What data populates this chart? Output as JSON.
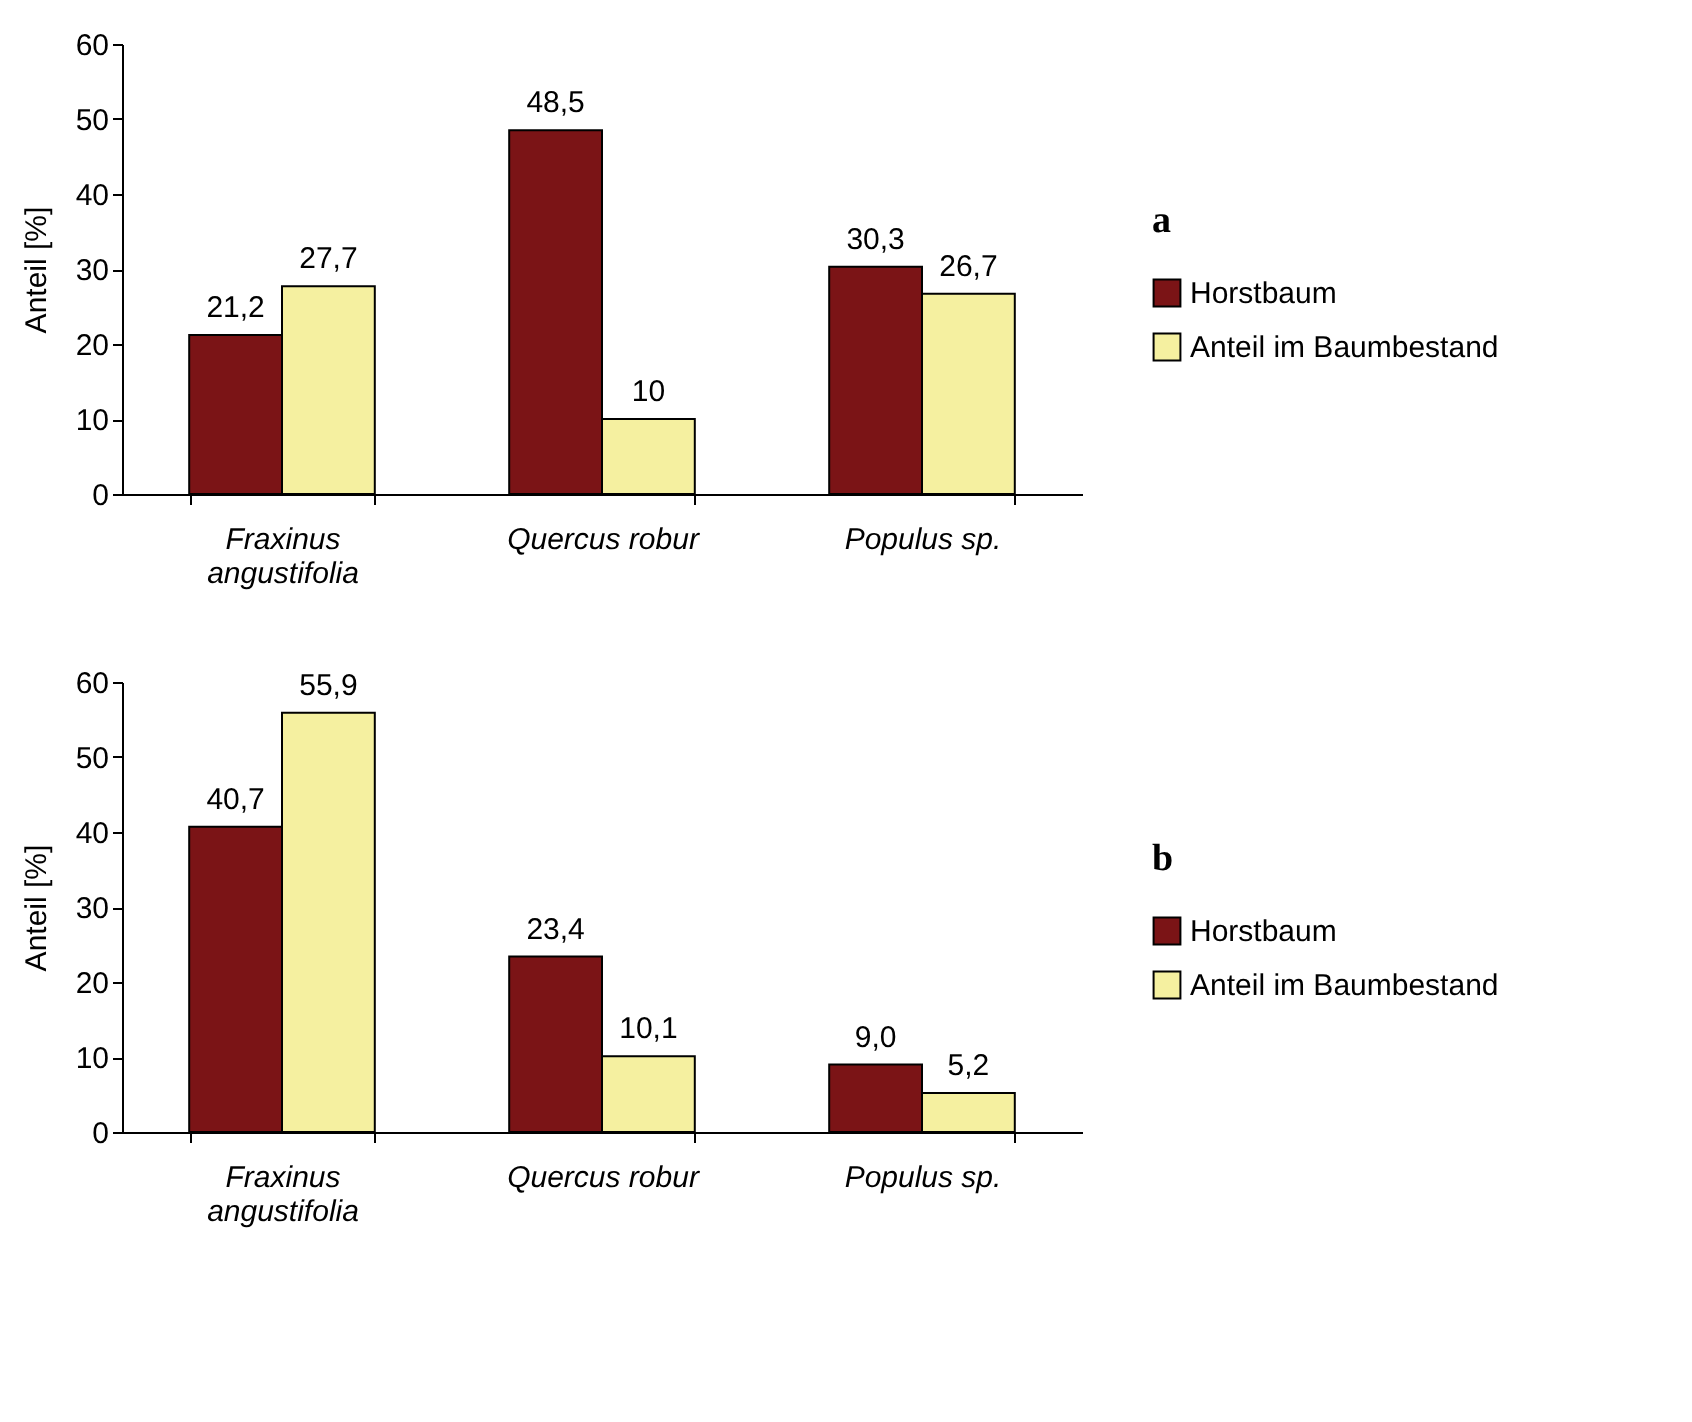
{
  "chart_data": [
    {
      "type": "bar",
      "annotations": [
        "a"
      ],
      "ylabel": "Anteil [%]",
      "categories": [
        "Fraxinus angustifolia",
        "Quercus robur",
        "Populus sp."
      ],
      "series": [
        {
          "name": "Horstbaum",
          "color": "#7b1416",
          "values": [
            21.2,
            48.5,
            30.3
          ],
          "value_labels": [
            "21,2",
            "48,5",
            "30,3"
          ]
        },
        {
          "name": "Anteil im Baumbestand",
          "color": "#f5f0a0",
          "values": [
            27.7,
            10,
            26.7
          ],
          "value_labels": [
            "27,7",
            "10",
            "26,7"
          ]
        }
      ],
      "ylim": [
        0,
        60
      ],
      "yticks": [
        0,
        10,
        20,
        30,
        40,
        50,
        60
      ],
      "grid": false,
      "legend": "right"
    },
    {
      "type": "bar",
      "annotations": [
        "b"
      ],
      "ylabel": "Anteil [%]",
      "categories": [
        "Fraxinus angustifolia",
        "Quercus robur",
        "Populus sp."
      ],
      "series": [
        {
          "name": "Horstbaum",
          "color": "#7b1416",
          "values": [
            40.7,
            23.4,
            9.0
          ],
          "value_labels": [
            "40,7",
            "23,4",
            "9,0"
          ]
        },
        {
          "name": "Anteil im Baumbestand",
          "color": "#f5f0a0",
          "values": [
            55.9,
            10.1,
            5.2
          ],
          "value_labels": [
            "55,9",
            "10,1",
            "5,2"
          ]
        }
      ],
      "ylim": [
        0,
        60
      ],
      "yticks": [
        0,
        10,
        20,
        30,
        40,
        50,
        60
      ],
      "grid": false,
      "legend": "right"
    }
  ]
}
